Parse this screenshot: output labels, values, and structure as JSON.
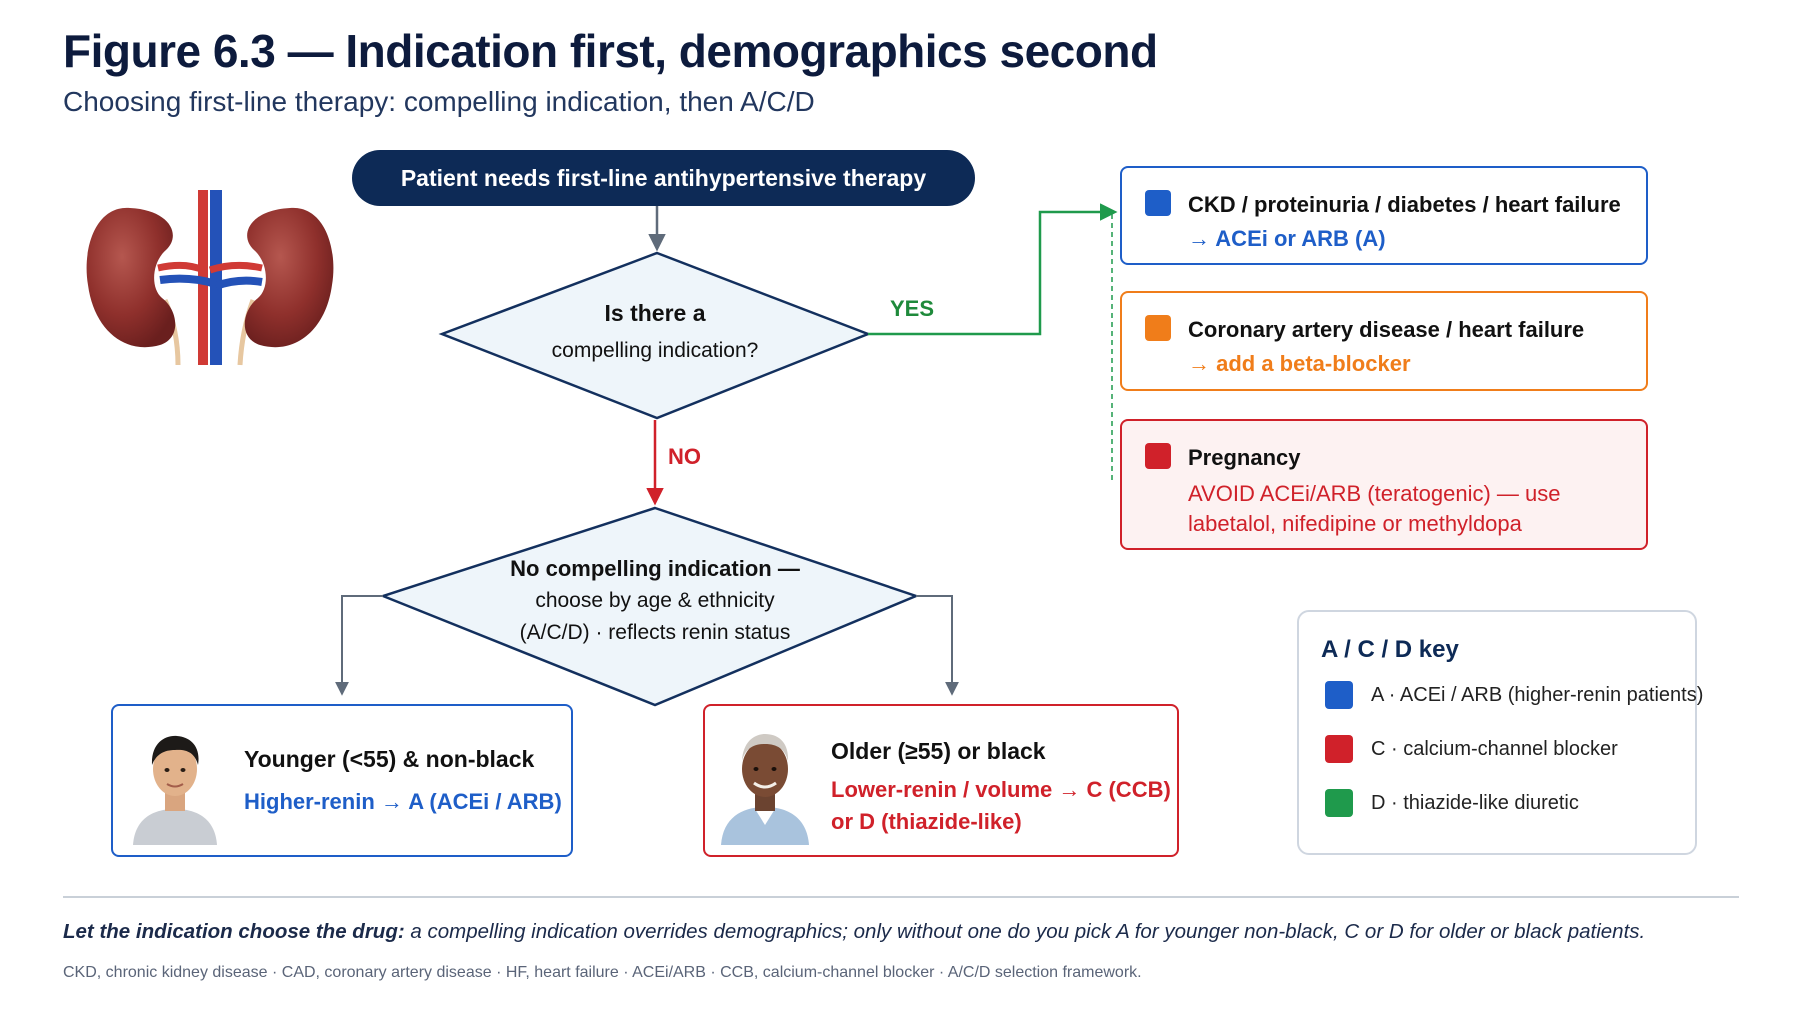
{
  "header": {
    "title": "Figure 6.3 — Indication first, demographics second",
    "subtitle": "Choosing first-line therapy: compelling indication, then A/C/D"
  },
  "flow": {
    "start": "Patient needs first-line antihypertensive therapy",
    "decision1": {
      "line1": "Is there a",
      "line2": "compelling indication?"
    },
    "yes_label": "YES",
    "no_label": "NO",
    "decision2": {
      "line1": "No compelling indication —",
      "line2": "choose by age & ethnicity",
      "line3": "(A/C/D) · reflects renin status"
    }
  },
  "indications": [
    {
      "condition": "CKD / proteinuria / diabetes / heart failure",
      "action": "→ ACEi or ARB (A)",
      "color": "#1e5ec8"
    },
    {
      "condition": "Coronary artery disease / heart failure",
      "action": "→ add a beta-blocker",
      "color": "#f07d1a"
    },
    {
      "condition": "Pregnancy",
      "action": "AVOID ACEi/ARB (teratogenic) — use labetalol, nifedipine or methyldopa",
      "color": "#d0212a"
    }
  ],
  "demographics": {
    "young": {
      "title": "Younger (<55) & non-black",
      "recommendation": "Higher-renin → A (ACEi / ARB)",
      "color": "#1e5ec8"
    },
    "old": {
      "title": "Older (≥55) or black",
      "recommendation": "Lower-renin / volume → C (CCB) or D (thiazide-like)",
      "color": "#d0212a"
    }
  },
  "key": {
    "title": "A / C / D key",
    "items": [
      {
        "label": "A · ACEi / ARB (higher-renin patients)",
        "color": "#1e5ec8"
      },
      {
        "label": "C · calcium-channel blocker",
        "color": "#d0212a"
      },
      {
        "label": "D · thiazide-like diuretic",
        "color": "#1f9a4c"
      }
    ]
  },
  "footer": {
    "lead": "Let the indication choose the drug:",
    "text": " a compelling indication overrides demographics; only without one do you pick A for younger non-black, C or D for older or black patients.",
    "abbreviations": "CKD, chronic kidney disease · CAD, coronary artery disease · HF, heart failure · ACEi/ARB · CCB, calcium-channel blocker · A/C/D selection framework."
  }
}
